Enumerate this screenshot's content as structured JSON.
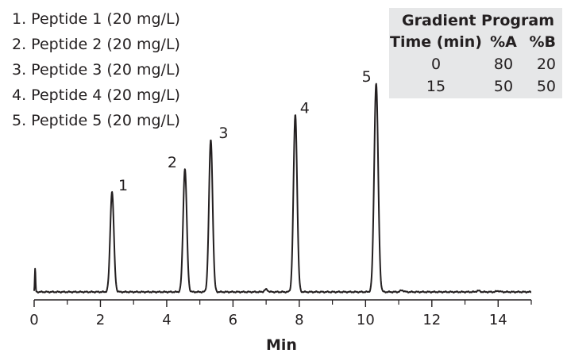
{
  "legend": [
    "1.  Peptide 1 (20 mg/L)",
    "2.  Peptide 2 (20 mg/L)",
    "3.  Peptide 3 (20 mg/L)",
    "4.  Peptide 4 (20 mg/L)",
    "5.  Peptide 5 (20 mg/L)"
  ],
  "gradient": {
    "title": "Gradient Program",
    "headers": [
      "Time (min)",
      "%A",
      "%B"
    ],
    "rows": [
      [
        "0",
        "80",
        "20"
      ],
      [
        "15",
        "50",
        "50"
      ]
    ]
  },
  "chart_data": {
    "type": "line",
    "xlabel": "Min",
    "ylabel": "",
    "xlim": [
      0,
      15
    ],
    "xticks": [
      0,
      2,
      4,
      6,
      8,
      10,
      12,
      14
    ],
    "xticks_minor": [
      1,
      3,
      5,
      7,
      9,
      11,
      13,
      15
    ],
    "y_axis_shown": false,
    "grid": false,
    "baseline": 0,
    "injection_spike": {
      "x": 0.03,
      "height": 0.11
    },
    "peaks": [
      {
        "label": "1",
        "x": 2.35,
        "height": 0.48,
        "width": 0.055
      },
      {
        "label": "2",
        "x": 4.55,
        "height": 0.59,
        "width": 0.055
      },
      {
        "label": "3",
        "x": 5.33,
        "height": 0.73,
        "width": 0.055
      },
      {
        "label": "4",
        "x": 7.88,
        "height": 0.85,
        "width": 0.055
      },
      {
        "label": "5",
        "x": 10.32,
        "height": 1.0,
        "width": 0.06
      }
    ],
    "minor_bumps": [
      {
        "x": 7.0,
        "height": 0.012
      },
      {
        "x": 11.1,
        "height": 0.008
      },
      {
        "x": 13.4,
        "height": 0.006
      },
      {
        "x": 14.0,
        "height": 0.005
      }
    ],
    "line_color": "#231f20",
    "box_color": "#e6e7e8"
  }
}
